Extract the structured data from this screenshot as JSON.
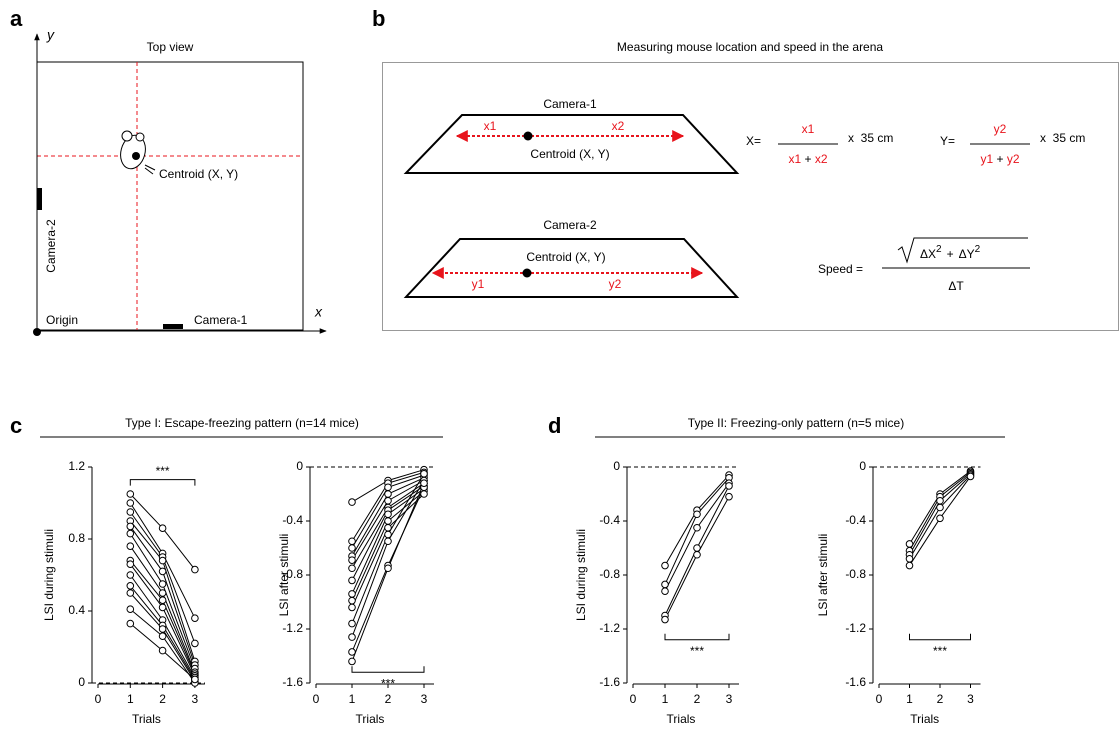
{
  "panel_a": {
    "label": "a",
    "title": "Top view",
    "y_axis": "y",
    "x_axis": "x",
    "centroid": "Centroid (X, Y)",
    "camera_2": "Camera-2",
    "camera_1": "Camera-1",
    "origin": "Origin"
  },
  "panel_b": {
    "label": "b",
    "title": "Measuring mouse location and speed in the arena",
    "camera_1": "Camera-1",
    "camera_2": "Camera-2",
    "centroid_1": "Centroid (X, Y)",
    "centroid_2": "Centroid (X, Y)",
    "x1": "x1",
    "x2": "x2",
    "y1": "y1",
    "y2": "y2",
    "formula_x": {
      "lhs": "X=",
      "numerator": "x1",
      "denominator": [
        "x1",
        "+",
        "x2"
      ],
      "factor": "x  35 cm"
    },
    "formula_y": {
      "lhs": "Y=",
      "numerator": "y2",
      "denominator": [
        "y1",
        "+",
        "y2"
      ],
      "factor": "x  35 cm"
    },
    "formula_speed": {
      "lhs": "Speed =",
      "numerator": [
        "ΔX",
        "2",
        "+",
        "ΔY",
        "2"
      ],
      "denominator": "ΔT"
    }
  },
  "panel_c": {
    "label": "c",
    "title": "Type I: Escape-freezing pattern (n=14 mice)"
  },
  "panel_d": {
    "label": "d",
    "title": "Type II: Freezing-only pattern (n=5 mice)"
  },
  "chart_data": [
    {
      "type": "line",
      "ylabel": "LSI during stimuli",
      "xlabel": "Trials",
      "x": [
        1,
        2,
        3
      ],
      "xlim": [
        0,
        3
      ],
      "xticks": [
        0,
        1,
        2,
        3
      ],
      "ylim": [
        0,
        1.2
      ],
      "yticks": [
        0,
        0.4,
        0.8,
        1.2
      ],
      "color": "#000000",
      "hline": 0,
      "annotations": [
        {
          "text": "***",
          "x": [
            1,
            3
          ],
          "y": 1.13
        }
      ],
      "series": [
        {
          "values": [
            1.05,
            0.86,
            0.63
          ]
        },
        {
          "values": [
            1.0,
            0.72,
            0.36
          ]
        },
        {
          "values": [
            0.95,
            0.7,
            0.22
          ]
        },
        {
          "values": [
            0.9,
            0.68,
            0.12
          ]
        },
        {
          "values": [
            0.87,
            0.62,
            0.1
          ]
        },
        {
          "values": [
            0.83,
            0.55,
            0.08
          ]
        },
        {
          "values": [
            0.76,
            0.5,
            0.06
          ]
        },
        {
          "values": [
            0.68,
            0.46,
            0.05
          ]
        },
        {
          "values": [
            0.66,
            0.42,
            0.04
          ]
        },
        {
          "values": [
            0.6,
            0.35,
            0.03
          ]
        },
        {
          "values": [
            0.54,
            0.32,
            0.02
          ]
        },
        {
          "values": [
            0.5,
            0.3,
            0.01
          ]
        },
        {
          "values": [
            0.41,
            0.26,
            0.0
          ]
        },
        {
          "values": [
            0.33,
            0.18,
            0.02
          ]
        }
      ]
    },
    {
      "type": "line",
      "ylabel": "LSI after stimuli",
      "xlabel": "Trials",
      "x": [
        1,
        2,
        3
      ],
      "xlim": [
        0,
        3
      ],
      "xticks": [
        0,
        1,
        2,
        3
      ],
      "ylim": [
        -1.6,
        0
      ],
      "yticks": [
        0,
        -0.4,
        -0.8,
        -1.2,
        -1.6
      ],
      "color": "#000000",
      "hline": 0,
      "annotations": [
        {
          "text": "***",
          "x": [
            1,
            3
          ],
          "y": -1.52
        }
      ],
      "series": [
        {
          "values": [
            -0.26,
            -0.1,
            -0.02
          ]
        },
        {
          "values": [
            -0.55,
            -0.12,
            -0.04
          ]
        },
        {
          "values": [
            -0.6,
            -0.15,
            -0.06
          ]
        },
        {
          "values": [
            -0.66,
            -0.2,
            -0.08
          ]
        },
        {
          "values": [
            -0.69,
            -0.25,
            -0.1
          ]
        },
        {
          "values": [
            -0.75,
            -0.3,
            -0.12
          ]
        },
        {
          "values": [
            -0.84,
            -0.32,
            -0.14
          ]
        },
        {
          "values": [
            -0.94,
            -0.35,
            -0.16
          ]
        },
        {
          "values": [
            -0.99,
            -0.4,
            -0.18
          ]
        },
        {
          "values": [
            -1.04,
            -0.45,
            -0.2
          ]
        },
        {
          "values": [
            -1.16,
            -0.5,
            -0.05
          ]
        },
        {
          "values": [
            -1.26,
            -0.55,
            -0.1
          ]
        },
        {
          "values": [
            -1.37,
            -0.73,
            -0.15
          ]
        },
        {
          "values": [
            -1.44,
            -0.75,
            -0.12
          ]
        }
      ]
    },
    {
      "type": "line",
      "ylabel": "LSI during stimuli",
      "xlabel": "Trials",
      "x": [
        1,
        2,
        3
      ],
      "xlim": [
        0,
        3
      ],
      "xticks": [
        0,
        1,
        2,
        3
      ],
      "ylim": [
        -1.6,
        0
      ],
      "yticks": [
        0,
        -0.4,
        -0.8,
        -1.2,
        -1.6
      ],
      "color": "#000000",
      "hline": 0,
      "annotations": [
        {
          "text": "***",
          "x": [
            1,
            3
          ],
          "y": -1.28
        }
      ],
      "series": [
        {
          "values": [
            -0.73,
            -0.32,
            -0.06
          ]
        },
        {
          "values": [
            -0.87,
            -0.35,
            -0.08
          ]
        },
        {
          "values": [
            -0.92,
            -0.45,
            -0.12
          ]
        },
        {
          "values": [
            -1.1,
            -0.6,
            -0.14
          ]
        },
        {
          "values": [
            -1.13,
            -0.65,
            -0.22
          ]
        }
      ]
    },
    {
      "type": "line",
      "ylabel": "LSI after stimuli",
      "xlabel": "Trials",
      "x": [
        1,
        2,
        3
      ],
      "xlim": [
        0,
        3
      ],
      "xticks": [
        0,
        1,
        2,
        3
      ],
      "ylim": [
        -1.6,
        0
      ],
      "yticks": [
        0,
        -0.4,
        -0.8,
        -1.2,
        -1.6
      ],
      "color": "#000000",
      "hline": 0,
      "annotations": [
        {
          "text": "***",
          "x": [
            1,
            3
          ],
          "y": -1.28
        }
      ],
      "series": [
        {
          "values": [
            -0.57,
            -0.2,
            -0.03
          ]
        },
        {
          "values": [
            -0.62,
            -0.22,
            -0.04
          ]
        },
        {
          "values": [
            -0.65,
            -0.25,
            -0.05
          ]
        },
        {
          "values": [
            -0.68,
            -0.3,
            -0.06
          ]
        },
        {
          "values": [
            -0.73,
            -0.38,
            -0.07
          ]
        }
      ]
    }
  ]
}
